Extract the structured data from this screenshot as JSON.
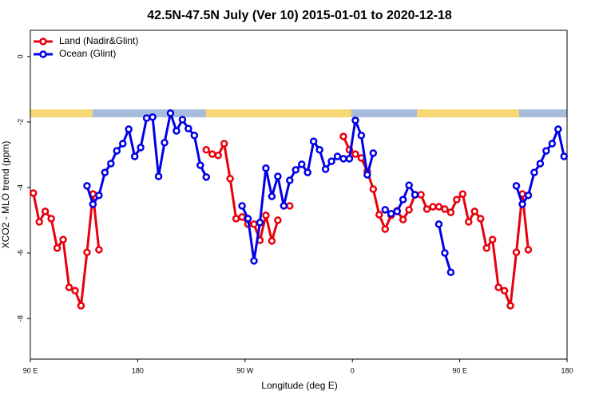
{
  "chart_data": {
    "type": "line",
    "title": "42.5N-47.5N July (Ver 10)   2015-01-01 to 2020-12-18",
    "x_label": "Longitude (deg E)",
    "y_label": "XCO2 - MLO trend (ppm)",
    "xlim": [
      90,
      540
    ],
    "ylim": [
      -9.24,
      0.8
    ],
    "xticks": [
      {
        "value": 90,
        "label": "90 E"
      },
      180,
      {
        "value": 270,
        "label": "90 W"
      },
      {
        "value": 360,
        "label": "0"
      },
      {
        "value": 450,
        "label": "90 E"
      },
      {
        "value": 540,
        "label": "180"
      }
    ],
    "yticks": [
      0,
      -2,
      -4,
      -6,
      -8
    ],
    "legend": "top-left",
    "series": [
      {
        "name": "Land (Nadir&Glint)",
        "color": "#e8000b",
        "x": [
          92.5,
          97.5,
          102.5,
          107.5,
          112.5,
          117.5,
          122.5,
          127.5,
          132.5,
          137.5,
          142.5,
          147.5,
          152.5,
          237.5,
          242.5,
          247.5,
          252.5,
          257.5,
          262.5,
          267.5,
          272.5,
          277.5,
          282.5,
          287.5,
          292.5,
          297.5,
          302.5,
          307.5,
          347.5,
          352.5,
          357.5,
          362.5,
          367.5,
          372.5,
          377.5,
          382.5,
          387.5,
          392.5,
          397.5,
          402.5,
          407.5,
          412.5,
          417.5,
          422.5,
          427.5,
          432.5,
          437.5,
          442.5,
          447.5,
          452.5,
          457.5,
          462.5,
          467.5,
          472.5,
          477.5,
          482.5,
          487.5,
          492.5,
          497.5,
          502.5,
          507.5
        ],
        "values": [
          -4.17,
          -5.05,
          -4.73,
          -4.95,
          -5.85,
          -5.59,
          -7.05,
          -7.15,
          -7.61,
          -5.98,
          -4.2,
          -5.9,
          null,
          -2.85,
          -2.98,
          -3.02,
          -2.66,
          -3.73,
          -4.95,
          -4.9,
          -5.12,
          -5.12,
          -5.61,
          -4.85,
          -5.63,
          -5.0,
          null,
          -4.56,
          null,
          -2.44,
          -2.85,
          -2.98,
          -3.1,
          -3.51,
          -4.05,
          -4.83,
          -5.27,
          -4.85,
          -4.71,
          -4.98,
          -4.68,
          -4.22,
          -4.22,
          -4.66,
          -4.59,
          -4.59,
          -4.66,
          -4.76,
          -4.37,
          -4.2,
          -5.05,
          -4.73,
          -4.95,
          -5.85,
          -5.59,
          -7.05,
          -7.15,
          -7.61,
          -5.98,
          -4.2,
          -5.9
        ]
      },
      {
        "name": "Ocean (Glint)",
        "color": "#0000e8",
        "x": [
          137.5,
          142.5,
          147.5,
          152.5,
          157.5,
          162.5,
          167.5,
          172.5,
          177.5,
          182.5,
          187.5,
          192.5,
          197.5,
          202.5,
          207.5,
          212.5,
          217.5,
          222.5,
          227.5,
          232.5,
          237.5,
          242.5,
          267.5,
          272.5,
          277.5,
          282.5,
          287.5,
          292.5,
          297.5,
          302.5,
          307.5,
          312.5,
          317.5,
          322.5,
          327.5,
          332.5,
          337.5,
          342.5,
          347.5,
          352.5,
          357.5,
          362.5,
          367.5,
          372.5,
          377.5,
          382.5,
          387.5,
          392.5,
          397.5,
          402.5,
          407.5,
          412.5,
          417.5,
          432.5,
          437.5,
          442.5,
          447.5,
          497.5,
          502.5,
          507.5,
          512.5,
          517.5,
          522.5,
          527.5,
          532.5,
          537.5
        ],
        "values": [
          -3.95,
          -4.51,
          -4.24,
          -3.54,
          -3.27,
          -2.88,
          -2.66,
          -2.22,
          -3.05,
          -2.78,
          -1.88,
          -1.85,
          -3.66,
          -2.63,
          -1.73,
          -2.27,
          -1.93,
          -2.2,
          -2.41,
          -3.32,
          -3.68,
          null,
          -4.56,
          -4.95,
          -6.24,
          -5.07,
          -3.41,
          -4.27,
          -3.66,
          -4.56,
          -3.78,
          -3.46,
          -3.29,
          -3.54,
          -2.59,
          -2.85,
          -3.44,
          -3.2,
          -3.05,
          -3.12,
          -3.12,
          -1.95,
          -2.41,
          -3.61,
          -2.95,
          null,
          -4.68,
          -4.8,
          -4.73,
          -4.37,
          -3.93,
          -4.22,
          null,
          -5.12,
          -6.0,
          -6.59,
          null,
          -3.95,
          -4.51,
          -4.24,
          -3.54,
          -3.27,
          -2.88,
          -2.66,
          -2.22,
          -3.05
        ]
      }
    ]
  }
}
